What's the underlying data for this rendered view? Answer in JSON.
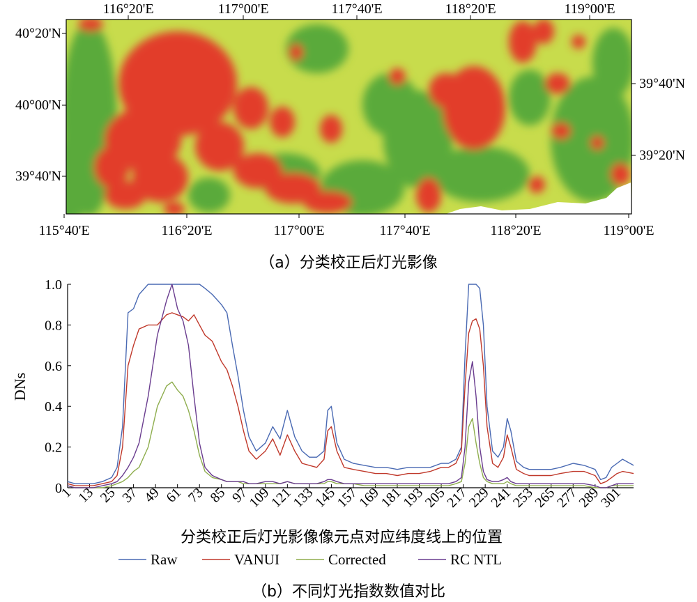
{
  "map": {
    "top_lon_ticks": [
      "116°20'E",
      "117°00'E",
      "117°40'E",
      "118°20'E",
      "119°00'E"
    ],
    "bottom_lon_ticks": [
      "115°40'E",
      "116°20'E",
      "117°00'E",
      "117°40'E",
      "118°20'E",
      "119°00'E"
    ],
    "left_lat_ticks": [
      "40°20'N",
      "40°00'N",
      "39°40'N"
    ],
    "right_lat_ticks": [
      "39°40'N",
      "39°20'N"
    ],
    "caption": "（a）分类校正后灯光影像",
    "colors": {
      "low": "#5aaa3a",
      "mid": "#c8dc4c",
      "high": "#e23c2c",
      "nodata": "#ffffff"
    }
  },
  "chart_data": {
    "type": "line",
    "xlabel": "分类校正后灯光影像像元点对应纬度线上的位置",
    "ylabel": "DNs",
    "xlim": [
      1,
      310
    ],
    "ylim": [
      0,
      1.0
    ],
    "x_tick_labels": [
      "1",
      "13",
      "25",
      "37",
      "49",
      "61",
      "73",
      "85",
      "97",
      "109",
      "121",
      "133",
      "145",
      "157",
      "169",
      "181",
      "193",
      "205",
      "217",
      "229",
      "241",
      "253",
      "265",
      "277",
      "289",
      "301"
    ],
    "y_tick_labels": [
      "0",
      "0.2",
      "0.4",
      "0.6",
      "0.8",
      "1.0"
    ],
    "x": [
      1,
      5,
      10,
      15,
      20,
      25,
      28,
      31,
      34,
      37,
      40,
      45,
      50,
      55,
      58,
      61,
      64,
      67,
      70,
      73,
      76,
      80,
      85,
      88,
      91,
      94,
      97,
      100,
      104,
      109,
      113,
      117,
      121,
      125,
      129,
      133,
      137,
      141,
      143,
      145,
      148,
      152,
      157,
      163,
      169,
      175,
      181,
      187,
      193,
      199,
      205,
      209,
      213,
      216,
      218,
      220,
      222,
      224,
      226,
      228,
      230,
      233,
      236,
      239,
      241,
      243,
      246,
      250,
      253,
      260,
      265,
      270,
      277,
      283,
      289,
      292,
      295,
      298,
      301,
      304,
      310
    ],
    "series": [
      {
        "name": "Raw",
        "color": "#4a6ab3",
        "values": [
          0.03,
          0.02,
          0.02,
          0.02,
          0.03,
          0.05,
          0.1,
          0.3,
          0.86,
          0.88,
          0.95,
          1.0,
          1.0,
          1.0,
          1.0,
          1.0,
          1.0,
          1.0,
          1.0,
          1.0,
          0.98,
          0.95,
          0.9,
          0.86,
          0.7,
          0.55,
          0.38,
          0.25,
          0.18,
          0.22,
          0.3,
          0.24,
          0.38,
          0.25,
          0.18,
          0.15,
          0.15,
          0.18,
          0.38,
          0.4,
          0.22,
          0.14,
          0.12,
          0.11,
          0.1,
          0.1,
          0.09,
          0.1,
          0.1,
          0.1,
          0.12,
          0.12,
          0.14,
          0.2,
          0.65,
          1.0,
          1.0,
          1.0,
          0.98,
          0.8,
          0.4,
          0.18,
          0.15,
          0.2,
          0.34,
          0.28,
          0.13,
          0.1,
          0.09,
          0.09,
          0.09,
          0.1,
          0.12,
          0.11,
          0.09,
          0.04,
          0.05,
          0.1,
          0.12,
          0.14,
          0.11
        ]
      },
      {
        "name": "VANUI",
        "color": "#c0392b",
        "values": [
          0.02,
          0.01,
          0.01,
          0.01,
          0.02,
          0.03,
          0.06,
          0.2,
          0.6,
          0.7,
          0.78,
          0.8,
          0.8,
          0.85,
          0.86,
          0.85,
          0.84,
          0.82,
          0.85,
          0.8,
          0.75,
          0.72,
          0.62,
          0.58,
          0.5,
          0.4,
          0.28,
          0.18,
          0.14,
          0.18,
          0.24,
          0.16,
          0.26,
          0.18,
          0.12,
          0.11,
          0.1,
          0.14,
          0.28,
          0.3,
          0.18,
          0.1,
          0.09,
          0.08,
          0.07,
          0.07,
          0.06,
          0.07,
          0.07,
          0.08,
          0.1,
          0.1,
          0.12,
          0.18,
          0.5,
          0.76,
          0.82,
          0.83,
          0.78,
          0.6,
          0.3,
          0.12,
          0.1,
          0.15,
          0.26,
          0.2,
          0.09,
          0.07,
          0.06,
          0.06,
          0.06,
          0.07,
          0.08,
          0.08,
          0.06,
          0.02,
          0.03,
          0.05,
          0.07,
          0.08,
          0.07
        ]
      },
      {
        "name": "Corrected",
        "color": "#8fae4f",
        "values": [
          0.01,
          0.0,
          0.0,
          0.0,
          0.0,
          0.01,
          0.02,
          0.03,
          0.05,
          0.08,
          0.1,
          0.2,
          0.4,
          0.5,
          0.52,
          0.48,
          0.45,
          0.38,
          0.28,
          0.16,
          0.08,
          0.05,
          0.04,
          0.03,
          0.03,
          0.03,
          0.02,
          0.02,
          0.02,
          0.02,
          0.02,
          0.02,
          0.03,
          0.02,
          0.02,
          0.02,
          0.02,
          0.02,
          0.03,
          0.03,
          0.02,
          0.02,
          0.02,
          0.01,
          0.01,
          0.01,
          0.01,
          0.01,
          0.01,
          0.01,
          0.01,
          0.01,
          0.02,
          0.03,
          0.12,
          0.3,
          0.34,
          0.22,
          0.12,
          0.05,
          0.03,
          0.02,
          0.02,
          0.02,
          0.03,
          0.02,
          0.01,
          0.01,
          0.01,
          0.01,
          0.01,
          0.01,
          0.01,
          0.01,
          0.0,
          0.0,
          0.0,
          0.01,
          0.01,
          0.01,
          0.01
        ]
      },
      {
        "name": "RC NTL",
        "color": "#6a3d8f",
        "values": [
          0.01,
          0.0,
          0.0,
          0.0,
          0.01,
          0.02,
          0.03,
          0.06,
          0.1,
          0.15,
          0.22,
          0.45,
          0.75,
          0.92,
          1.0,
          0.88,
          0.82,
          0.7,
          0.45,
          0.22,
          0.1,
          0.06,
          0.04,
          0.03,
          0.03,
          0.03,
          0.03,
          0.02,
          0.02,
          0.03,
          0.03,
          0.02,
          0.03,
          0.02,
          0.02,
          0.02,
          0.02,
          0.03,
          0.04,
          0.04,
          0.03,
          0.02,
          0.02,
          0.02,
          0.02,
          0.02,
          0.02,
          0.02,
          0.02,
          0.02,
          0.02,
          0.02,
          0.03,
          0.05,
          0.2,
          0.52,
          0.62,
          0.45,
          0.2,
          0.08,
          0.04,
          0.03,
          0.03,
          0.04,
          0.05,
          0.03,
          0.02,
          0.02,
          0.02,
          0.02,
          0.02,
          0.02,
          0.02,
          0.02,
          0.01,
          0.0,
          0.0,
          0.01,
          0.02,
          0.02,
          0.02
        ]
      }
    ],
    "legend": "bottom-center",
    "caption": "（b）不同灯光指数数值对比"
  }
}
